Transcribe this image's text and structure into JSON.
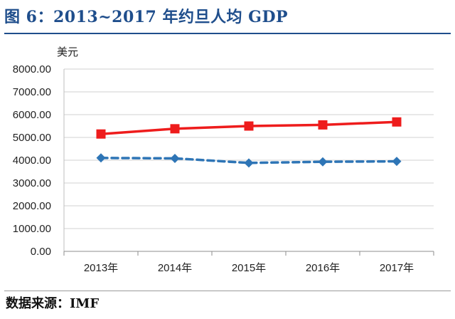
{
  "header": {
    "title": "图 6：2013~2017 年约旦人均 GDP"
  },
  "footer": {
    "source": "数据来源：IMF"
  },
  "chart_data": {
    "type": "line",
    "title": "图 6：2013~2017 年约旦人均 GDP",
    "ylabel": "美元",
    "xlabel": "",
    "ylim": [
      0,
      8000
    ],
    "yticks": [
      0,
      1000,
      2000,
      3000,
      4000,
      5000,
      6000,
      7000,
      8000
    ],
    "ytick_labels": [
      "0.00",
      "1000.00",
      "2000.00",
      "3000.00",
      "4000.00",
      "5000.00",
      "6000.00",
      "7000.00",
      "8000.00"
    ],
    "grid": true,
    "legend": "none",
    "categories": [
      "2013年",
      "2014年",
      "2015年",
      "2016年",
      "2017年"
    ],
    "series": [
      {
        "name": "series-1",
        "color": "#ee1c1c",
        "style": "solid",
        "marker": "square",
        "values": [
          5150,
          5380,
          5500,
          5550,
          5680
        ]
      },
      {
        "name": "series-2",
        "color": "#2e75b6",
        "style": "dashed",
        "marker": "diamond",
        "values": [
          4100,
          4080,
          3880,
          3930,
          3950
        ]
      }
    ]
  }
}
